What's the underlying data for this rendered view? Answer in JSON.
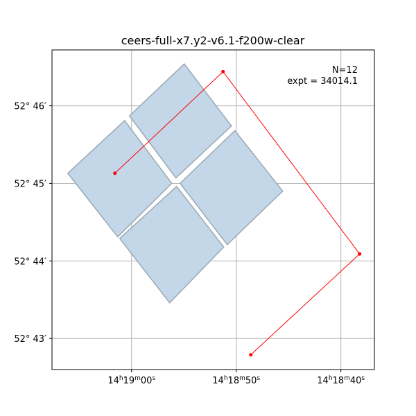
{
  "chart_data": {
    "type": "footprint",
    "title": "ceers-full-x7.y2-v6.1-f200w-clear",
    "annotations": [
      "N=12",
      "expt = 34014.1"
    ],
    "polygon_color": "#c3d7e8",
    "polygons": [
      {
        "x": [
          54.97,
          50.46,
          55.76,
          60.2
        ],
        "y": [
          46.54,
          45.74,
          45.07,
          45.87
        ]
      },
      {
        "x": [
          60.66,
          56.16,
          61.32,
          66.09
        ],
        "y": [
          45.81,
          45.0,
          44.31,
          45.13
        ]
      },
      {
        "x": [
          50.13,
          45.56,
          50.86,
          55.36
        ],
        "y": [
          45.68,
          44.9,
          44.21,
          45.0
        ]
      },
      {
        "x": [
          55.7,
          51.19,
          56.36,
          61.13
        ],
        "y": [
          44.96,
          44.18,
          43.46,
          44.29
        ]
      }
    ],
    "path": {
      "color": "#ff0000",
      "x": [
        61.59,
        51.26,
        38.21,
        48.61
      ],
      "y": [
        45.13,
        46.44,
        44.09,
        42.79
      ]
    },
    "xlim": [
      67.6,
      36.8
    ],
    "ylim": [
      42.6,
      46.72
    ],
    "xticks": [
      {
        "value": 60,
        "label": "14h19m00s"
      },
      {
        "value": 50,
        "label": "14h18m50s"
      },
      {
        "value": 40,
        "label": "14h18m40s"
      }
    ],
    "yticks": [
      {
        "value": 46,
        "label": "52° 46′"
      },
      {
        "value": 45,
        "label": "52° 45′"
      },
      {
        "value": 44,
        "label": "52° 44′"
      },
      {
        "value": 43,
        "label": "52° 43′"
      }
    ],
    "grid": true
  }
}
